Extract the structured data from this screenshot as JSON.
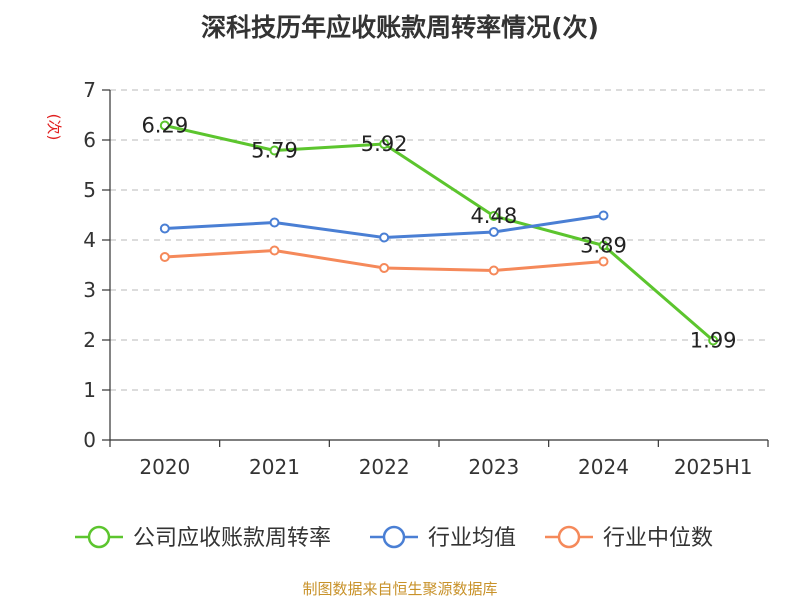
{
  "chart_data": {
    "type": "line",
    "title": "深科技历年应收账款周转率情况(次)",
    "ylabel": "(次)",
    "xlabel": "",
    "categories": [
      "2020",
      "2021",
      "2022",
      "2023",
      "2024",
      "2025H1"
    ],
    "ylim": [
      0,
      7
    ],
    "yticks": [
      0,
      1,
      2,
      3,
      4,
      5,
      6,
      7
    ],
    "grid": true,
    "legend_position": "bottom",
    "series": [
      {
        "name": "公司应收账款周转率",
        "color": "#5cc52e",
        "show_labels": true,
        "values": [
          6.29,
          5.79,
          5.92,
          4.48,
          3.89,
          1.99
        ],
        "labels": [
          "6.29",
          "5.79",
          "5.92",
          "4.48",
          "3.89",
          "1.99"
        ]
      },
      {
        "name": "行业均值",
        "color": "#4a7fd4",
        "show_labels": false,
        "values": [
          4.23,
          4.35,
          4.05,
          4.16,
          4.49,
          null
        ]
      },
      {
        "name": "行业中位数",
        "color": "#f5895a",
        "show_labels": false,
        "values": [
          3.66,
          3.79,
          3.44,
          3.39,
          3.57,
          null
        ]
      }
    ]
  },
  "footer": {
    "source": "制图数据来自恒生聚源数据库"
  }
}
